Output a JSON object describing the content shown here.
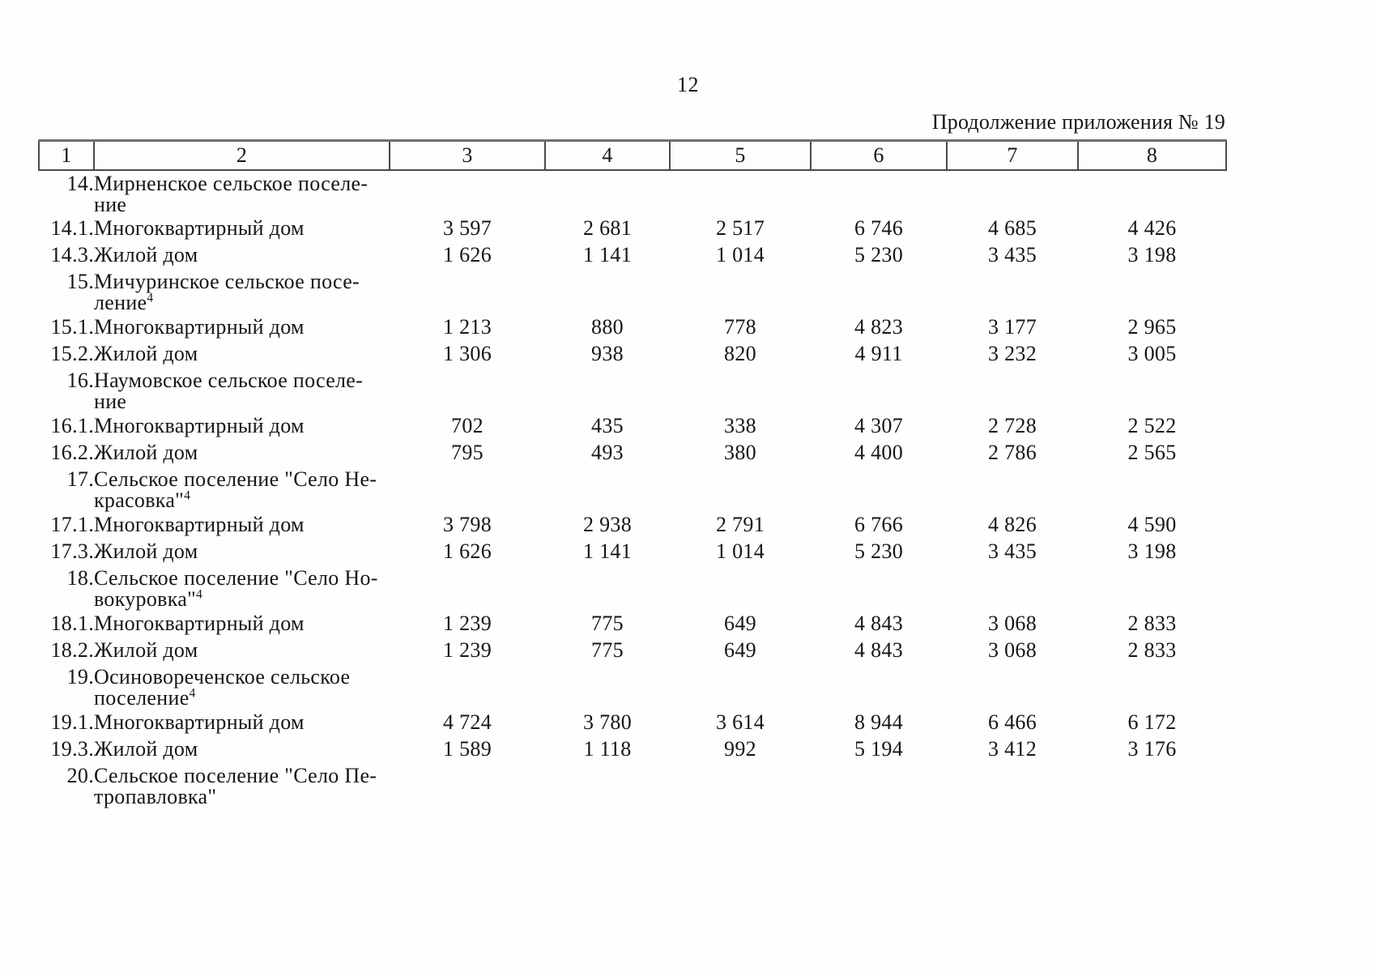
{
  "page": {
    "number": "12",
    "continuation": "Продолжение приложения № 19"
  },
  "table": {
    "column_headers": [
      "1",
      "2",
      "3",
      "4",
      "5",
      "6",
      "7",
      "8"
    ],
    "rows": [
      {
        "num": "14.",
        "lines": [
          "Мирненское сельское поселе-",
          "ние"
        ],
        "sup": "",
        "values": []
      },
      {
        "num": "14.1.",
        "lines": [
          "Многоквартирный дом"
        ],
        "sup": "",
        "values": [
          "3 597",
          "2 681",
          "2 517",
          "6 746",
          "4 685",
          "4 426"
        ]
      },
      {
        "num": "14.3.",
        "lines": [
          "Жилой дом"
        ],
        "sup": "",
        "values": [
          "1 626",
          "1 141",
          "1 014",
          "5 230",
          "3 435",
          "3 198"
        ]
      },
      {
        "num": "15.",
        "lines": [
          "Мичуринское сельское посе-",
          "ление"
        ],
        "sup": "4",
        "values": []
      },
      {
        "num": "15.1.",
        "lines": [
          "Многоквартирный дом"
        ],
        "sup": "",
        "values": [
          "1 213",
          "880",
          "778",
          "4 823",
          "3 177",
          "2 965"
        ]
      },
      {
        "num": "15.2.",
        "lines": [
          "Жилой дом"
        ],
        "sup": "",
        "values": [
          "1 306",
          "938",
          "820",
          "4 911",
          "3 232",
          "3 005"
        ]
      },
      {
        "num": "16.",
        "lines": [
          "Наумовское сельское поселе-",
          "ние"
        ],
        "sup": "",
        "values": []
      },
      {
        "num": "16.1.",
        "lines": [
          "Многоквартирный дом"
        ],
        "sup": "",
        "values": [
          "702",
          "435",
          "338",
          "4 307",
          "2 728",
          "2 522"
        ]
      },
      {
        "num": "16.2.",
        "lines": [
          "Жилой дом"
        ],
        "sup": "",
        "values": [
          "795",
          "493",
          "380",
          "4 400",
          "2 786",
          "2 565"
        ]
      },
      {
        "num": "17.",
        "lines": [
          "Сельское поселение \"Село Не-",
          "красовка\""
        ],
        "sup": "4",
        "values": []
      },
      {
        "num": "17.1.",
        "lines": [
          "Многоквартирный дом"
        ],
        "sup": "",
        "values": [
          "3 798",
          "2 938",
          "2 791",
          "6 766",
          "4 826",
          "4 590"
        ]
      },
      {
        "num": "17.3.",
        "lines": [
          "Жилой дом"
        ],
        "sup": "",
        "values": [
          "1 626",
          "1 141",
          "1 014",
          "5 230",
          "3 435",
          "3 198"
        ]
      },
      {
        "num": "18.",
        "lines": [
          "Сельское поселение \"Село Но-",
          "вокуровка\""
        ],
        "sup": "4",
        "values": []
      },
      {
        "num": "18.1.",
        "lines": [
          "Многоквартирный дом"
        ],
        "sup": "",
        "values": [
          "1 239",
          "775",
          "649",
          "4 843",
          "3 068",
          "2 833"
        ]
      },
      {
        "num": "18.2.",
        "lines": [
          "Жилой дом"
        ],
        "sup": "",
        "values": [
          "1 239",
          "775",
          "649",
          "4 843",
          "3 068",
          "2 833"
        ]
      },
      {
        "num": "19.",
        "lines": [
          "Осиновореченское сельское",
          "поселение"
        ],
        "sup": "4",
        "values": []
      },
      {
        "num": "19.1.",
        "lines": [
          "Многоквартирный дом"
        ],
        "sup": "",
        "values": [
          "4 724",
          "3 780",
          "3 614",
          "8 944",
          "6 466",
          "6 172"
        ]
      },
      {
        "num": "19.3.",
        "lines": [
          "Жилой дом"
        ],
        "sup": "",
        "values": [
          "1 589",
          "1 118",
          "992",
          "5 194",
          "3 412",
          "3 176"
        ]
      },
      {
        "num": "20.",
        "lines": [
          "Сельское поселение \"Село Пе-",
          "тропавловка\""
        ],
        "sup": "",
        "values": []
      }
    ]
  }
}
